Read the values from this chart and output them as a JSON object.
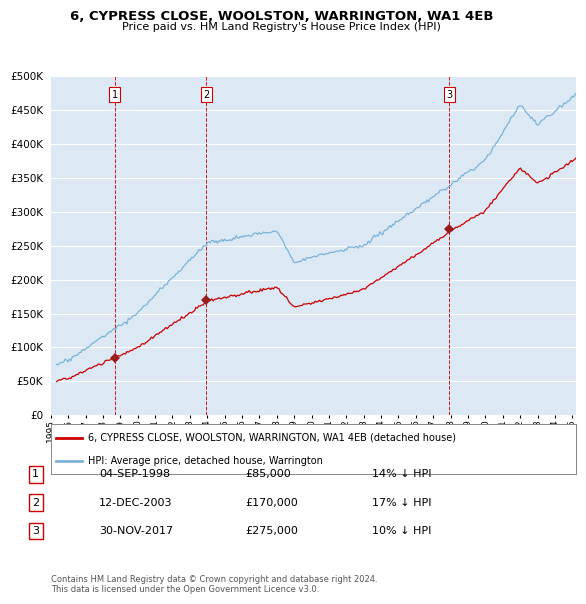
{
  "title_line1": "6, CYPRESS CLOSE, WOOLSTON, WARRINGTON, WA1 4EB",
  "title_line2": "Price paid vs. HM Land Registry's House Price Index (HPI)",
  "background_color": "#ffffff",
  "plot_bg_color": "#dce9f5",
  "grid_color": "#ffffff",
  "hpi_line_color": "#7ab3d8",
  "sale_line_color": "#cc0000",
  "vline_color": "#cc0000",
  "marker_color": "#9b1a1a",
  "sale_dates_num": [
    1998.67,
    2003.95,
    2017.92
  ],
  "sale_prices": [
    85000,
    170000,
    275000
  ],
  "sale_labels": [
    "1",
    "2",
    "3"
  ],
  "legend_entries": [
    "6, CYPRESS CLOSE, WOOLSTON, WARRINGTON, WA1 4EB (detached house)",
    "HPI: Average price, detached house, Warrington"
  ],
  "table_rows": [
    [
      "1",
      "04-SEP-1998",
      "£85,000",
      "14% ↓ HPI"
    ],
    [
      "2",
      "12-DEC-2003",
      "£170,000",
      "17% ↓ HPI"
    ],
    [
      "3",
      "30-NOV-2017",
      "£275,000",
      "10% ↓ HPI"
    ]
  ],
  "footer_text": "Contains HM Land Registry data © Crown copyright and database right 2024.\nThis data is licensed under the Open Government Licence v3.0.",
  "ylim": [
    0,
    500000
  ],
  "yticks": [
    0,
    50000,
    100000,
    150000,
    200000,
    250000,
    300000,
    350000,
    400000,
    450000,
    500000
  ],
  "xlim_start": 1995.3,
  "xlim_end": 2025.2
}
